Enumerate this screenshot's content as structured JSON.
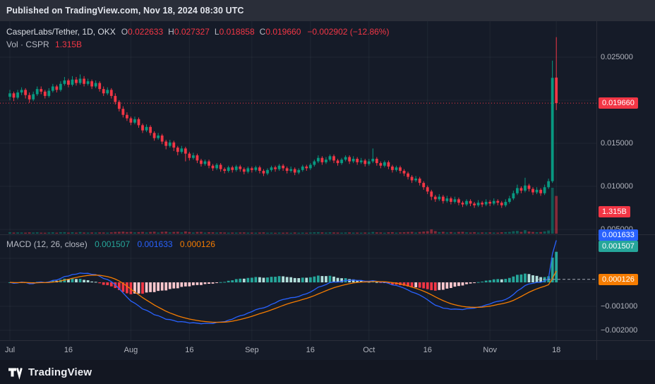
{
  "published": {
    "text": "Published on TradingView.com, Nov 18, 2024 08:30 UTC"
  },
  "legend": {
    "symbol": "CasperLabs/Tether, 1D, OKX",
    "ohlc": [
      {
        "k": "O",
        "v": "0.022633"
      },
      {
        "k": "H",
        "v": "0.027327"
      },
      {
        "k": "L",
        "v": "0.018858"
      },
      {
        "k": "C",
        "v": "0.019660"
      }
    ],
    "change": "−0.002902 (−12.86%)",
    "vol_label": "Vol · CSPR",
    "vol_value": "1.315B"
  },
  "macd_legend": {
    "name": "MACD",
    "params": "(12, 26, close)",
    "values": [
      {
        "v": "0.001507",
        "color": "#26A69A"
      },
      {
        "v": "0.001633",
        "color": "#2962FF"
      },
      {
        "v": "0.000126",
        "color": "#F57C00"
      }
    ]
  },
  "price_axis": {
    "ticks": [
      {
        "label": "0.025000",
        "value": 0.025
      },
      {
        "label": "0.015000",
        "value": 0.015
      },
      {
        "label": "0.010000",
        "value": 0.01
      },
      {
        "label": "0.005000",
        "value": 0.005
      }
    ],
    "price_label": {
      "text": "0.019660",
      "value": 0.01966
    },
    "volume_label": {
      "text": "1.315B"
    }
  },
  "macd_axis": {
    "labels": [
      {
        "text": "0.001633",
        "value": 0.001633,
        "color": "#2962FF"
      },
      {
        "text": "0.001507",
        "value": 0.001507,
        "color": "#26A69A"
      },
      {
        "text": "0.000126",
        "value": 0.000126,
        "color": "#F57C00"
      }
    ],
    "ticks": [
      {
        "label": "−0.001000",
        "value": -0.001
      },
      {
        "label": "−0.002000",
        "value": -0.002
      }
    ]
  },
  "footer": {
    "brand": "TradingView"
  },
  "colors": {
    "up": "#089981",
    "down": "#F23645",
    "macd_line": "#2962FF",
    "signal_line": "#F57C00",
    "hist_pos": "#26A69A",
    "hist_pos_weak": "#B2DFDB",
    "hist_neg": "#F23645",
    "hist_neg_weak": "#FBC7CD",
    "grid": "rgba(226,232,244,0.055)"
  },
  "chart_data": {
    "type": "candlestick",
    "symbol": "CSPR/USDT 1D OKX",
    "indicator": "MACD(12, 26, close, 9)",
    "price_unit": 0.001,
    "volume_unit": "millions",
    "last_price": 0.01966,
    "last_volume_text": "1.315B",
    "price_range": [
      0.0044,
      0.0292
    ],
    "macd_range": [
      -0.0024,
      0.002
    ],
    "time_ticks": [
      {
        "label": "Jul",
        "day": 0
      },
      {
        "label": "16",
        "day": 15
      },
      {
        "label": "Aug",
        "day": 31
      },
      {
        "label": "16",
        "day": 46
      },
      {
        "label": "Sep",
        "day": 62
      },
      {
        "label": "16",
        "day": 77
      },
      {
        "label": "Oct",
        "day": 92
      },
      {
        "label": "16",
        "day": 107
      },
      {
        "label": "Nov",
        "day": 123
      },
      {
        "label": "18",
        "day": 140
      }
    ],
    "candles": [
      [
        20.4,
        21.2,
        20.0,
        20.8,
        45
      ],
      [
        20.8,
        21.0,
        19.9,
        20.3,
        38
      ],
      [
        20.3,
        21.2,
        20.1,
        20.9,
        42
      ],
      [
        20.9,
        21.5,
        20.6,
        21.2,
        40
      ],
      [
        21.2,
        21.4,
        20.2,
        20.6,
        36
      ],
      [
        20.6,
        20.9,
        19.7,
        20.1,
        44
      ],
      [
        20.1,
        21.0,
        19.9,
        20.7,
        39
      ],
      [
        20.7,
        21.6,
        20.5,
        21.3,
        47
      ],
      [
        21.3,
        21.6,
        20.7,
        21.0,
        35
      ],
      [
        21.0,
        21.2,
        20.2,
        20.5,
        33
      ],
      [
        20.5,
        21.4,
        20.3,
        21.1,
        41
      ],
      [
        21.1,
        21.9,
        20.9,
        21.6,
        46
      ],
      [
        21.6,
        21.8,
        20.9,
        21.2,
        34
      ],
      [
        21.2,
        22.2,
        21.0,
        21.9,
        49
      ],
      [
        21.9,
        22.7,
        21.7,
        22.3,
        52
      ],
      [
        22.3,
        22.5,
        21.5,
        21.8,
        37
      ],
      [
        21.8,
        22.8,
        21.6,
        22.4,
        48
      ],
      [
        22.4,
        22.7,
        21.7,
        22.0,
        36
      ],
      [
        22.0,
        23.0,
        21.8,
        22.5,
        55
      ],
      [
        22.5,
        22.8,
        21.6,
        21.9,
        40
      ],
      [
        21.9,
        22.5,
        21.7,
        22.2,
        38
      ],
      [
        22.2,
        22.4,
        21.3,
        21.6,
        42
      ],
      [
        21.6,
        22.3,
        21.4,
        22.0,
        39
      ],
      [
        22.0,
        22.2,
        21.0,
        21.3,
        44
      ],
      [
        21.3,
        21.6,
        20.5,
        20.8,
        41
      ],
      [
        20.8,
        21.5,
        20.6,
        21.2,
        37
      ],
      [
        21.2,
        21.4,
        20.2,
        20.5,
        46
      ],
      [
        20.5,
        20.8,
        19.5,
        19.8,
        58
      ],
      [
        19.8,
        20.0,
        18.7,
        19.0,
        63
      ],
      [
        19.0,
        19.3,
        18.0,
        18.3,
        70
      ],
      [
        18.3,
        18.6,
        17.6,
        17.9,
        54
      ],
      [
        17.9,
        18.1,
        17.1,
        17.4,
        61
      ],
      [
        17.4,
        18.1,
        17.2,
        17.8,
        43
      ],
      [
        17.8,
        18.0,
        16.8,
        17.1,
        52
      ],
      [
        17.1,
        17.3,
        16.2,
        16.5,
        59
      ],
      [
        16.5,
        17.2,
        16.3,
        16.9,
        40
      ],
      [
        16.9,
        17.1,
        15.9,
        16.2,
        57
      ],
      [
        16.2,
        16.4,
        15.3,
        15.6,
        66
      ],
      [
        15.6,
        16.2,
        15.4,
        15.9,
        38
      ],
      [
        15.9,
        16.1,
        14.9,
        15.2,
        62
      ],
      [
        15.2,
        15.4,
        14.3,
        14.7,
        71
      ],
      [
        14.7,
        15.4,
        14.5,
        15.1,
        45
      ],
      [
        15.1,
        15.3,
        14.1,
        14.5,
        58
      ],
      [
        14.5,
        14.7,
        13.6,
        14.0,
        64
      ],
      [
        14.0,
        14.7,
        13.8,
        14.4,
        42
      ],
      [
        14.4,
        14.6,
        12.9,
        13.8,
        78
      ],
      [
        13.8,
        14.0,
        13.0,
        13.3,
        55
      ],
      [
        13.3,
        13.9,
        13.1,
        13.6,
        39
      ],
      [
        13.6,
        13.8,
        12.7,
        13.0,
        57
      ],
      [
        13.0,
        13.2,
        12.3,
        12.6,
        60
      ],
      [
        12.6,
        13.1,
        12.4,
        12.9,
        36
      ],
      [
        12.9,
        13.1,
        12.1,
        12.4,
        49
      ],
      [
        12.4,
        12.6,
        11.8,
        12.1,
        46
      ],
      [
        12.1,
        12.7,
        11.9,
        12.5,
        38
      ],
      [
        12.5,
        12.7,
        11.7,
        12.0,
        47
      ],
      [
        12.0,
        12.2,
        11.5,
        11.8,
        41
      ],
      [
        11.8,
        12.4,
        11.6,
        12.2,
        35
      ],
      [
        12.2,
        12.4,
        11.6,
        11.9,
        39
      ],
      [
        11.9,
        12.5,
        11.7,
        12.3,
        37
      ],
      [
        12.3,
        12.5,
        11.7,
        12.0,
        42
      ],
      [
        12.0,
        12.2,
        11.4,
        11.7,
        44
      ],
      [
        11.7,
        12.3,
        11.5,
        12.1,
        36
      ],
      [
        12.1,
        12.3,
        11.6,
        11.9,
        38
      ],
      [
        11.9,
        12.4,
        11.7,
        12.2,
        34
      ],
      [
        12.2,
        12.4,
        11.5,
        11.8,
        40
      ],
      [
        11.8,
        12.0,
        11.2,
        11.5,
        45
      ],
      [
        11.5,
        12.1,
        11.3,
        11.9,
        33
      ],
      [
        11.9,
        12.4,
        11.7,
        12.2,
        36
      ],
      [
        12.2,
        12.4,
        11.7,
        12.0,
        31
      ],
      [
        12.0,
        12.6,
        11.8,
        12.4,
        38
      ],
      [
        12.4,
        12.6,
        11.8,
        12.1,
        35
      ],
      [
        12.1,
        12.3,
        11.5,
        11.8,
        39
      ],
      [
        11.8,
        12.3,
        11.6,
        12.0,
        30
      ],
      [
        12.0,
        12.2,
        11.3,
        11.6,
        41
      ],
      [
        11.6,
        12.1,
        11.4,
        11.9,
        32
      ],
      [
        11.9,
        12.5,
        11.7,
        12.3,
        37
      ],
      [
        12.3,
        12.5,
        11.8,
        12.1,
        33
      ],
      [
        12.1,
        12.7,
        11.9,
        12.5,
        40
      ],
      [
        12.5,
        13.1,
        12.3,
        12.9,
        48
      ],
      [
        12.9,
        13.6,
        12.7,
        13.3,
        52
      ],
      [
        13.3,
        13.5,
        12.5,
        12.8,
        44
      ],
      [
        12.8,
        13.4,
        12.6,
        13.1,
        38
      ],
      [
        13.1,
        13.7,
        12.9,
        13.5,
        46
      ],
      [
        13.5,
        13.7,
        12.7,
        13.0,
        42
      ],
      [
        13.0,
        13.2,
        12.4,
        12.7,
        39
      ],
      [
        12.7,
        13.3,
        12.5,
        13.1,
        35
      ],
      [
        13.1,
        13.6,
        12.9,
        13.4,
        41
      ],
      [
        13.4,
        13.6,
        12.6,
        12.9,
        43
      ],
      [
        12.9,
        13.5,
        12.7,
        13.2,
        36
      ],
      [
        13.2,
        13.4,
        12.5,
        12.8,
        38
      ],
      [
        12.8,
        13.3,
        12.6,
        13.0,
        34
      ],
      [
        13.0,
        13.2,
        12.3,
        12.6,
        40
      ],
      [
        12.6,
        13.2,
        12.4,
        12.9,
        37
      ],
      [
        12.9,
        14.4,
        12.7,
        13.2,
        58
      ],
      [
        13.2,
        13.4,
        12.4,
        12.7,
        45
      ],
      [
        12.7,
        12.9,
        12.1,
        12.4,
        42
      ],
      [
        12.4,
        13.0,
        12.2,
        12.8,
        33
      ],
      [
        12.8,
        13.0,
        12.0,
        12.3,
        47
      ],
      [
        12.3,
        12.5,
        11.6,
        11.9,
        51
      ],
      [
        11.9,
        12.4,
        11.7,
        12.2,
        35
      ],
      [
        12.2,
        12.4,
        11.5,
        11.8,
        44
      ],
      [
        11.8,
        12.0,
        11.2,
        11.5,
        49
      ],
      [
        11.5,
        11.7,
        10.8,
        11.1,
        56
      ],
      [
        11.1,
        11.3,
        10.4,
        10.7,
        61
      ],
      [
        10.7,
        11.2,
        10.5,
        10.9,
        38
      ],
      [
        10.9,
        11.1,
        10.1,
        10.4,
        57
      ],
      [
        10.4,
        10.6,
        9.6,
        9.9,
        72
      ],
      [
        9.9,
        10.1,
        9.1,
        9.4,
        85
      ],
      [
        9.4,
        9.6,
        8.4,
        8.8,
        150
      ],
      [
        8.8,
        9.0,
        8.2,
        8.5,
        88
      ],
      [
        8.5,
        9.1,
        8.3,
        8.8,
        52
      ],
      [
        8.8,
        9.0,
        8.0,
        8.3,
        64
      ],
      [
        8.3,
        8.9,
        8.1,
        8.6,
        41
      ],
      [
        8.6,
        8.8,
        7.9,
        8.2,
        55
      ],
      [
        8.2,
        8.8,
        8.0,
        8.5,
        38
      ],
      [
        8.5,
        8.7,
        7.8,
        8.1,
        58
      ],
      [
        8.1,
        8.3,
        7.6,
        7.9,
        62
      ],
      [
        7.9,
        8.5,
        7.7,
        8.3,
        45
      ],
      [
        8.3,
        8.5,
        7.7,
        8.0,
        40
      ],
      [
        8.0,
        8.2,
        7.5,
        7.8,
        51
      ],
      [
        7.8,
        8.4,
        7.6,
        8.1,
        36
      ],
      [
        8.1,
        8.3,
        7.6,
        7.9,
        42
      ],
      [
        7.9,
        8.5,
        7.7,
        8.2,
        39
      ],
      [
        8.2,
        8.4,
        7.7,
        8.0,
        44
      ],
      [
        8.0,
        8.6,
        7.8,
        8.3,
        37
      ],
      [
        8.3,
        8.5,
        7.8,
        8.1,
        35
      ],
      [
        8.1,
        8.3,
        7.5,
        7.8,
        48
      ],
      [
        7.8,
        8.5,
        7.6,
        8.2,
        52
      ],
      [
        8.2,
        8.9,
        8.0,
        8.6,
        58
      ],
      [
        8.6,
        9.5,
        8.4,
        9.2,
        85
      ],
      [
        9.2,
        10.2,
        9.0,
        9.8,
        96
      ],
      [
        9.8,
        10.0,
        9.2,
        9.5,
        60
      ],
      [
        9.5,
        11.0,
        9.3,
        10.1,
        120
      ],
      [
        10.1,
        10.3,
        9.4,
        9.7,
        74
      ],
      [
        9.7,
        9.9,
        9.0,
        9.3,
        58
      ],
      [
        9.3,
        9.9,
        9.1,
        9.6,
        49
      ],
      [
        9.6,
        9.8,
        8.9,
        9.2,
        55
      ],
      [
        9.2,
        10.2,
        9.0,
        9.9,
        78
      ],
      [
        9.9,
        10.9,
        9.7,
        10.6,
        110
      ],
      [
        10.6,
        24.6,
        10.4,
        22.6,
        1600
      ],
      [
        22.633,
        27.327,
        18.858,
        19.66,
        1315
      ]
    ]
  }
}
